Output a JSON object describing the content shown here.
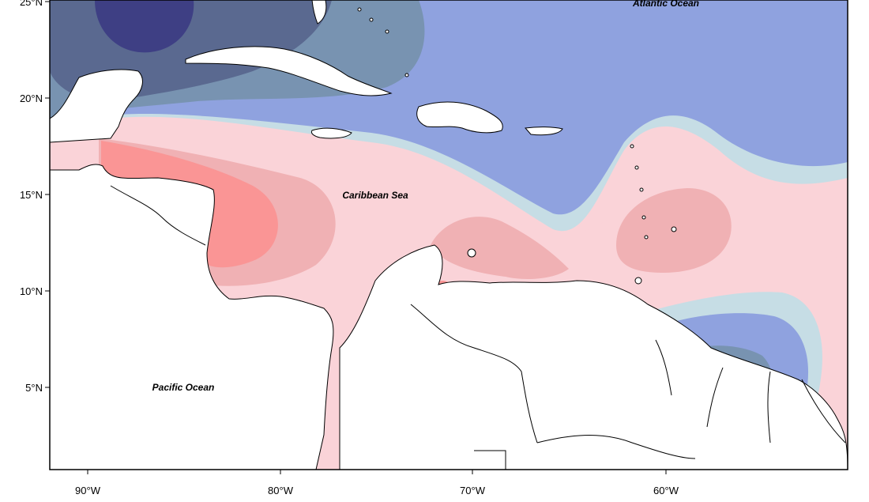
{
  "map": {
    "colors": {
      "strong_negative": "#3e3f84",
      "negative_dark": "#5a6990",
      "negative_mid": "#7893b1",
      "negative_light": "#8fa2df",
      "neutral_cool": "#c6dde5",
      "neutral_warm": "#fde9ec",
      "positive_light": "#fad3d8",
      "positive_mid": "#f0b1b4",
      "positive_strong": "#fa9595",
      "land": "#ffffff",
      "coast": "#000000"
    },
    "labels": {
      "atlantic": "Atlantic Ocean",
      "caribbean": "Caribbean Sea",
      "pacific": "Pacific Ocean"
    },
    "lat_ticks": [
      "25°N",
      "20°N",
      "15°N",
      "10°N",
      "5°N"
    ],
    "lon_ticks": [
      "90°W",
      "80°W",
      "70°W",
      "60°W"
    ]
  }
}
